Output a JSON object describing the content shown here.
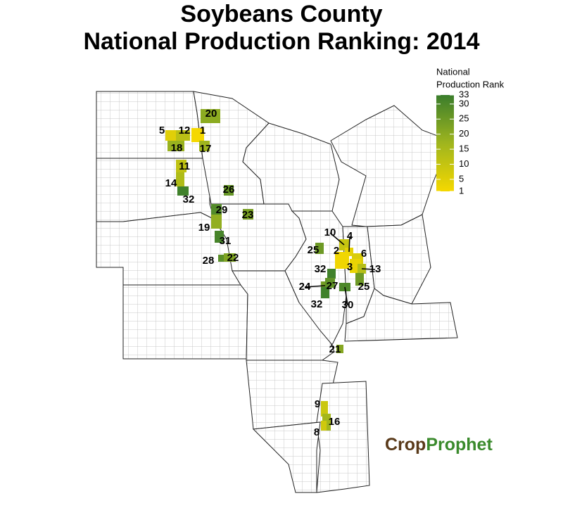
{
  "title": [
    "Soybeans County",
    "National Production Ranking: 2014"
  ],
  "legend": {
    "title": [
      "National",
      "Production Rank"
    ],
    "range": [
      1,
      33
    ],
    "ticks": [
      1,
      5,
      10,
      15,
      20,
      25,
      30,
      33
    ],
    "colors": [
      "#f5d800",
      "#9fb51e",
      "#3a7d2c"
    ]
  },
  "counties": [
    {
      "rank": 20
    },
    {
      "rank": 5
    },
    {
      "rank": 12
    },
    {
      "rank": 1
    },
    {
      "rank": 18
    },
    {
      "rank": 17
    },
    {
      "rank": 11
    },
    {
      "rank": 14
    },
    {
      "rank": 32
    },
    {
      "rank": 26
    },
    {
      "rank": 29
    },
    {
      "rank": 23
    },
    {
      "rank": 19
    },
    {
      "rank": 31
    },
    {
      "rank": 28
    },
    {
      "rank": 22
    },
    {
      "rank": 10
    },
    {
      "rank": 4
    },
    {
      "rank": 2
    },
    {
      "rank": 25
    },
    {
      "rank": 6
    },
    {
      "rank": 32
    },
    {
      "rank": 3
    },
    {
      "rank": 13
    },
    {
      "rank": 24
    },
    {
      "rank": 27
    },
    {
      "rank": 25
    },
    {
      "rank": 32
    },
    {
      "rank": 30
    },
    {
      "rank": 21
    },
    {
      "rank": 9
    },
    {
      "rank": 16
    },
    {
      "rank": 8
    }
  ],
  "logo": [
    "Crop",
    "Prophet"
  ]
}
